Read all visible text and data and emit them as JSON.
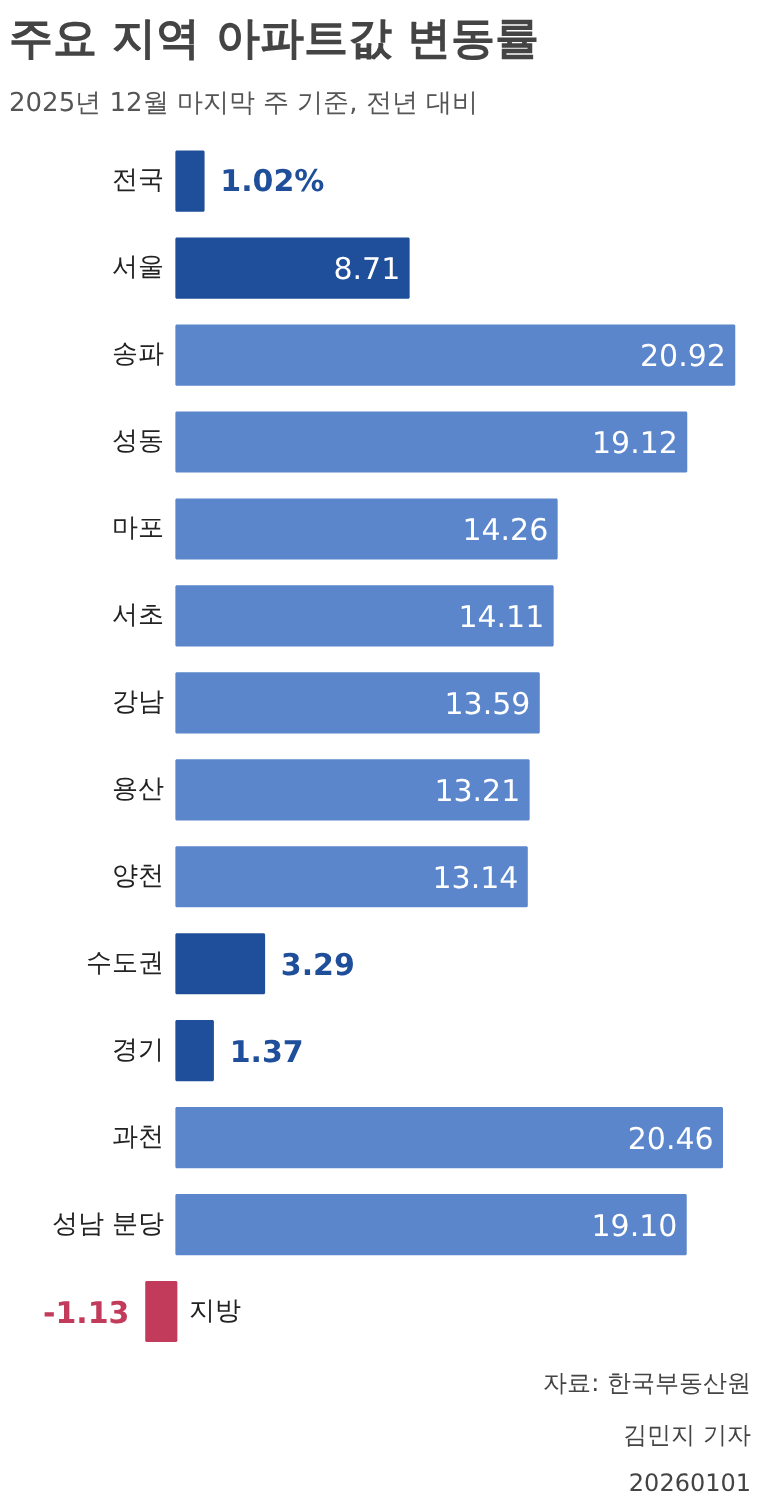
{
  "chart_data": {
    "type": "bar",
    "orientation": "horizontal",
    "title": "주요 지역 아파트값 변동률",
    "subtitle": "2025년 12월 마지막 주 기준, 전년 대비",
    "categories": [
      "전국",
      "서울",
      "송파",
      "성동",
      "마포",
      "서초",
      "강남",
      "용산",
      "양천",
      "수도권",
      "경기",
      "과천",
      "성남 분당",
      "지방"
    ],
    "values": [
      1.02,
      8.71,
      20.92,
      19.12,
      14.26,
      14.11,
      13.59,
      13.21,
      13.14,
      3.29,
      1.37,
      20.46,
      19.1,
      -1.13
    ],
    "value_labels": [
      "1.02%",
      "8.71",
      "20.92",
      "19.12",
      "14.26",
      "14.11",
      "13.59",
      "13.21",
      "13.14",
      "3.29",
      "1.37",
      "20.46",
      "19.10",
      "-1.13"
    ],
    "colors": [
      "#1f4e9a",
      "#1f4e9a",
      "#5b86cc",
      "#5b86cc",
      "#5b86cc",
      "#5b86cc",
      "#5b86cc",
      "#5b86cc",
      "#5b86cc",
      "#1f4e9a",
      "#1f4e9a",
      "#5b86cc",
      "#5b86cc",
      "#c23b5b"
    ],
    "annotations": [
      "자료: 한국부동산원",
      "김민지 기자",
      "20260101"
    ]
  }
}
